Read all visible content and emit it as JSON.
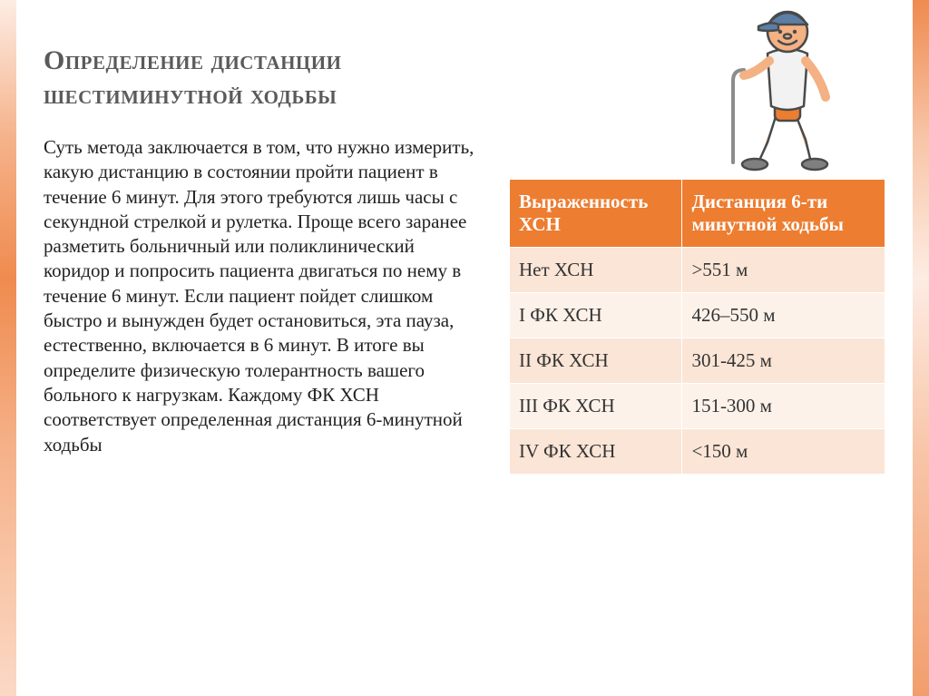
{
  "title": "Определение дистанции шестиминутной ходьбы",
  "body_text": "Суть метода заключается в том, что нужно измерить, какую дистанцию в состоянии пройти пациент в течение 6 минут. Для этого требуются лишь часы с секундной стрелкой и рулетка. Проще всего заранее разметить больничный или поликлинический коридор и попросить пациента двигаться по нему в течение 6 минут. Если пациент пойдет слишком быстро и вынужден будет остановиться, эта пауза, естественно, включается в 6 минут. В итоге вы определите физическую толерантность вашего больного к нагрузкам. Каждому ФК ХСН соответствует определенная дистанция 6-минутной ходьбы",
  "table": {
    "header_bg": "#ed7d31",
    "header_text_color": "#ffffff",
    "row_colors_alt": [
      "#fbe5d6",
      "#fdf2ea"
    ],
    "border_color": "#ffffff",
    "fontsize": 21,
    "columns": [
      {
        "label": "Выраженность ХСН",
        "width": "46%"
      },
      {
        "label": "Дистанция 6-ти минутной ходьбы",
        "width": "54%"
      }
    ],
    "rows": [
      [
        "Нет ХСН",
        " >551 м"
      ],
      [
        "I ФК ХСН",
        "426–550 м"
      ],
      [
        "II ФК ХСН",
        "301-425 м"
      ],
      [
        "III ФК ХСН",
        "151-300 м"
      ],
      [
        "IV ФК ХСН",
        "<150 м"
      ]
    ]
  },
  "frame_colors": [
    "#fdece3",
    "#fbd9c5",
    "#f8c5a8",
    "#f5b28a",
    "#f29e6c",
    "#ef8b4f"
  ],
  "title_color": "#5a5a5a",
  "body_color": "#222222",
  "background_color": "#ffffff",
  "illustration": {
    "cap_color": "#5b7fa6",
    "skin_color": "#f4b183",
    "shirt_color": "#f2f2f2",
    "shorts_color": "#ed7d31",
    "shoe_color": "#7f7f7f",
    "cane_color": "#8c8c8c",
    "outline_color": "#4a4a4a"
  }
}
